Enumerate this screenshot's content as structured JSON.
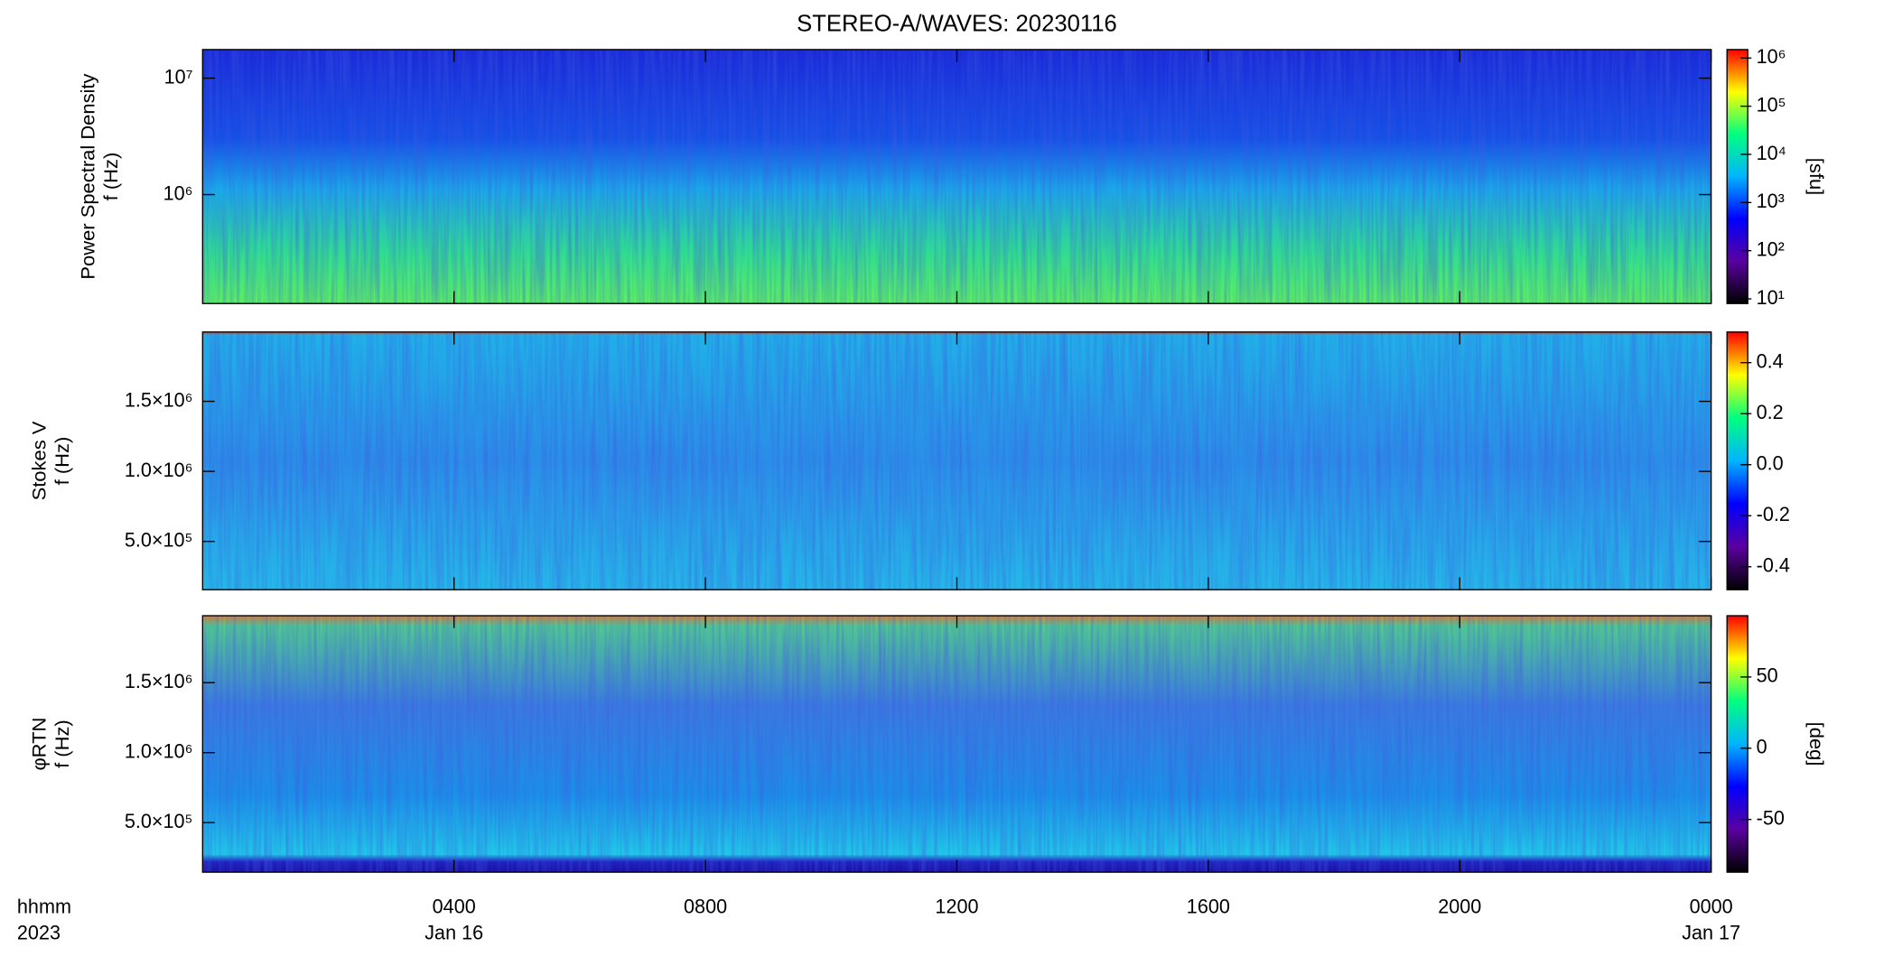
{
  "title": "STEREO-A/WAVES: 20230116",
  "x_axis": {
    "xlim": [
      0,
      24
    ],
    "xticks": [
      {
        "value": 4,
        "label": "0400"
      },
      {
        "value": 8,
        "label": "0800"
      },
      {
        "value": 12,
        "label": "1200"
      },
      {
        "value": 16,
        "label": "1600"
      },
      {
        "value": 20,
        "label": "2000"
      },
      {
        "value": 24,
        "label": "0000"
      }
    ],
    "date_labels": [
      {
        "value": 4,
        "label": "Jan 16"
      },
      {
        "value": 24,
        "label": "Jan 17"
      }
    ],
    "label_lines": [
      "hhmm",
      "2023"
    ]
  },
  "chart_data": [
    {
      "type": "spectrogram",
      "ylabel": [
        "Power Spectral Density",
        "f (Hz)"
      ],
      "ylog": true,
      "ylim": [
        116000,
        17600000
      ],
      "yticks": [
        {
          "value": 1000000,
          "label": "10⁶"
        },
        {
          "value": 10000000,
          "label": "10⁷"
        }
      ],
      "colorbar": {
        "label": "[sfu]",
        "log": true,
        "clim": [
          8,
          1500000
        ],
        "cticks": [
          {
            "value": 10,
            "label": "10¹"
          },
          {
            "value": 100,
            "label": "10²"
          },
          {
            "value": 1000,
            "label": "10³"
          },
          {
            "value": 10000,
            "label": "10⁴"
          },
          {
            "value": 100000,
            "label": "10⁵"
          },
          {
            "value": 1000000,
            "label": "10⁶"
          }
        ],
        "colormap": [
          "#000000",
          "#5a00a0",
          "#0000ff",
          "#00b4ff",
          "#00ff80",
          "#ffff00",
          "#ff0000"
        ]
      }
    },
    {
      "type": "spectrogram",
      "ylabel": [
        "Stokes V",
        "f (Hz)"
      ],
      "ylog": false,
      "ylim": [
        155000,
        1995000
      ],
      "yticks": [
        {
          "value": 500000,
          "label": "5.0×10⁵"
        },
        {
          "value": 1000000,
          "label": "1.0×10⁶"
        },
        {
          "value": 1500000,
          "label": "1.5×10⁶"
        }
      ],
      "colorbar": {
        "log": false,
        "clim": [
          -0.49,
          0.52
        ],
        "cticks": [
          -0.4,
          -0.2,
          {
            "value": 0,
            "label": "0.0"
          },
          0.2,
          0.4
        ],
        "colormap": [
          "#000000",
          "#5a00a0",
          "#0000ff",
          "#00b4ff",
          "#00ff80",
          "#ffff00",
          "#ff0000"
        ]
      }
    },
    {
      "type": "spectrogram",
      "ylabel": [
        "φRTN",
        "f (Hz)"
      ],
      "ylog": false,
      "ylim": [
        146000,
        1978000
      ],
      "yticks": [
        {
          "value": 500000,
          "label": "5.0×10⁵"
        },
        {
          "value": 1000000,
          "label": "1.0×10⁶"
        },
        {
          "value": 1500000,
          "label": "1.5×10⁶"
        }
      ],
      "colorbar": {
        "label": "[deg]",
        "log": false,
        "clim": [
          -87,
          93
        ],
        "cticks": [
          -50,
          0,
          50
        ],
        "colormap": [
          "#000000",
          "#5a00a0",
          "#0000ff",
          "#00b4ff",
          "#00ff80",
          "#ffff00",
          "#ff0000"
        ]
      }
    }
  ]
}
